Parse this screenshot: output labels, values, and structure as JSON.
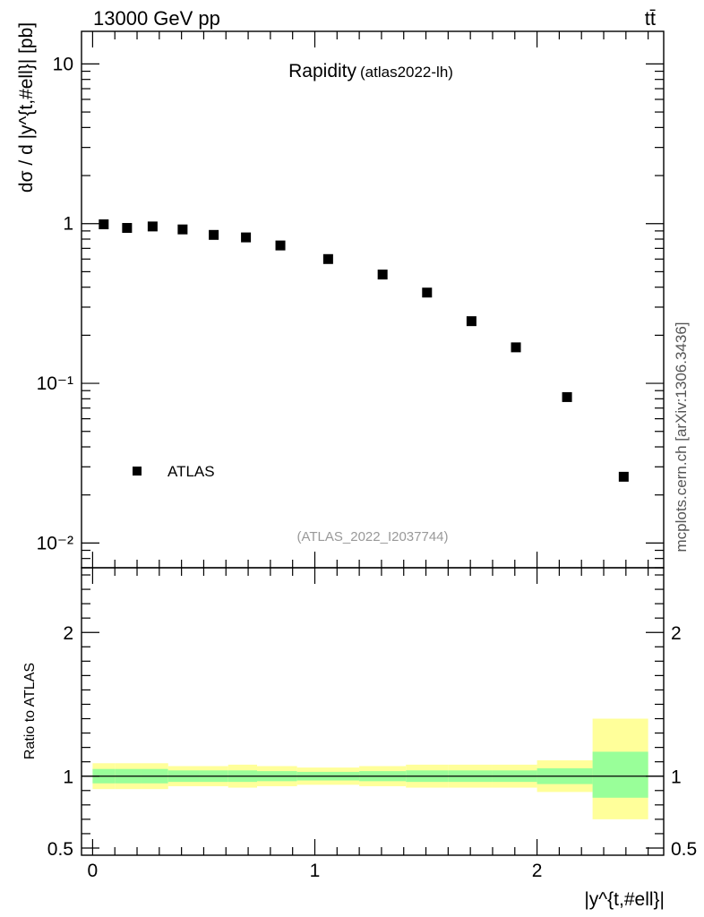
{
  "header": {
    "left": "13000 GeV pp",
    "right": "tt̄"
  },
  "side_label": "mcplots.cern.ch [arXiv:1306.3436]",
  "chart_data": [
    {
      "type": "scatter",
      "title": "Rapidity",
      "subtitle": "(atlas2022-lh)",
      "watermark": "(ATLAS_2022_I2037744)",
      "ylabel": "dσ / d |y^{t,#ell}| [pb]",
      "yscale": "log",
      "ylim": [
        0.007,
        16
      ],
      "xlim": [
        -0.05,
        2.57
      ],
      "ytick_labels": [
        "10⁻²",
        "10⁻¹",
        "1",
        "10"
      ],
      "yticks": [
        0.01,
        0.1,
        1,
        10
      ],
      "legend": {
        "label": "ATLAS",
        "position": "bottom-left"
      },
      "series": [
        {
          "name": "ATLAS",
          "marker": "square",
          "color": "#000000",
          "x": [
            0.05,
            0.155,
            0.27,
            0.405,
            0.545,
            0.69,
            0.845,
            1.06,
            1.305,
            1.505,
            1.705,
            1.905,
            2.135,
            2.39
          ],
          "y": [
            0.99,
            0.94,
            0.96,
            0.92,
            0.85,
            0.82,
            0.73,
            0.6,
            0.48,
            0.37,
            0.245,
            0.168,
            0.082,
            0.026
          ]
        }
      ]
    },
    {
      "type": "area",
      "ylabel": "Ratio to ATLAS",
      "xlabel": "|y^{t,#ell}|",
      "xlim": [
        -0.05,
        2.57
      ],
      "ylim": [
        0.45,
        2.45
      ],
      "yticks": [
        0.5,
        1,
        2
      ],
      "ytick_labels": [
        "0.5",
        "1",
        "2"
      ],
      "xticks": [
        0,
        1,
        2
      ],
      "xtick_labels": [
        "0",
        "1",
        "2"
      ],
      "reference_line": 1,
      "colors": {
        "outer_band": "#ffff9a",
        "inner_band": "#99ff99"
      },
      "bins": [
        {
          "lo": 0.0,
          "hi": 0.1,
          "outer": [
            0.91,
            1.09
          ],
          "inner": [
            0.95,
            1.05
          ]
        },
        {
          "lo": 0.1,
          "hi": 0.22,
          "outer": [
            0.91,
            1.09
          ],
          "inner": [
            0.95,
            1.05
          ]
        },
        {
          "lo": 0.22,
          "hi": 0.34,
          "outer": [
            0.91,
            1.09
          ],
          "inner": [
            0.95,
            1.05
          ]
        },
        {
          "lo": 0.34,
          "hi": 0.48,
          "outer": [
            0.93,
            1.07
          ],
          "inner": [
            0.96,
            1.04
          ]
        },
        {
          "lo": 0.48,
          "hi": 0.61,
          "outer": [
            0.93,
            1.07
          ],
          "inner": [
            0.96,
            1.04
          ]
        },
        {
          "lo": 0.61,
          "hi": 0.74,
          "outer": [
            0.92,
            1.08
          ],
          "inner": [
            0.96,
            1.04
          ]
        },
        {
          "lo": 0.74,
          "hi": 0.92,
          "outer": [
            0.93,
            1.07
          ],
          "inner": [
            0.965,
            1.035
          ]
        },
        {
          "lo": 0.92,
          "hi": 1.2,
          "outer": [
            0.94,
            1.06
          ],
          "inner": [
            0.97,
            1.03
          ]
        },
        {
          "lo": 1.2,
          "hi": 1.41,
          "outer": [
            0.93,
            1.07
          ],
          "inner": [
            0.965,
            1.035
          ]
        },
        {
          "lo": 1.41,
          "hi": 1.6,
          "outer": [
            0.92,
            1.08
          ],
          "inner": [
            0.96,
            1.04
          ]
        },
        {
          "lo": 1.6,
          "hi": 1.8,
          "outer": [
            0.92,
            1.08
          ],
          "inner": [
            0.96,
            1.04
          ]
        },
        {
          "lo": 1.8,
          "hi": 2.0,
          "outer": [
            0.92,
            1.08
          ],
          "inner": [
            0.96,
            1.04
          ]
        },
        {
          "lo": 2.0,
          "hi": 2.25,
          "outer": [
            0.89,
            1.11
          ],
          "inner": [
            0.945,
            1.055
          ]
        },
        {
          "lo": 2.25,
          "hi": 2.5,
          "outer": [
            0.7,
            1.4
          ],
          "inner": [
            0.85,
            1.17
          ]
        }
      ]
    }
  ]
}
